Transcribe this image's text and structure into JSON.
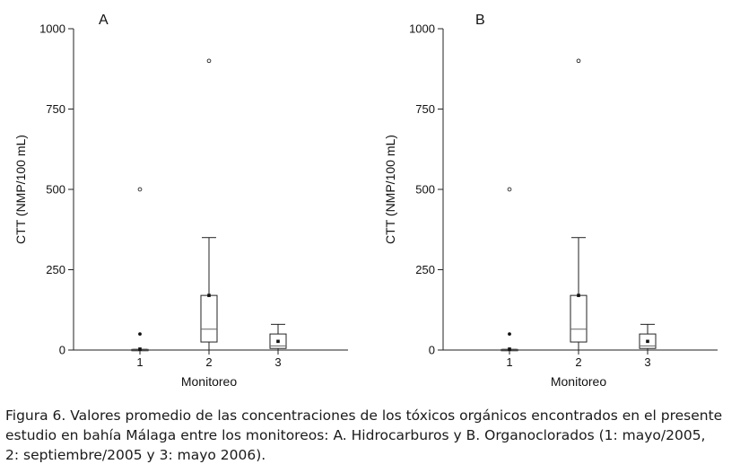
{
  "chart_data": [
    {
      "type": "box",
      "panel_label": "A",
      "xlabel": "Monitoreo",
      "ylabel": "CTT (NMP/100 mL)",
      "ylim": [
        0,
        1000
      ],
      "yticks": [
        0,
        250,
        500,
        750,
        1000
      ],
      "categories": [
        "1",
        "2",
        "3"
      ],
      "boxes": [
        {
          "category": "1",
          "whisker_low": 0,
          "q1": 0,
          "median": 0,
          "q3": 2,
          "whisker_high": 2,
          "mean": 3,
          "outliers": [
            50,
            500
          ]
        },
        {
          "category": "2",
          "whisker_low": 0,
          "q1": 25,
          "median": 65,
          "q3": 170,
          "whisker_high": 350,
          "mean": 170,
          "outliers": [
            900
          ]
        },
        {
          "category": "3",
          "whisker_low": 0,
          "q1": 5,
          "median": 13,
          "q3": 50,
          "whisker_high": 80,
          "mean": 27,
          "outliers": []
        }
      ]
    },
    {
      "type": "box",
      "panel_label": "B",
      "xlabel": "Monitoreo",
      "ylabel": "CTT (NMP/100 mL)",
      "ylim": [
        0,
        1000
      ],
      "yticks": [
        0,
        250,
        500,
        750,
        1000
      ],
      "categories": [
        "1",
        "2",
        "3"
      ],
      "boxes": [
        {
          "category": "1",
          "whisker_low": 0,
          "q1": 0,
          "median": 0,
          "q3": 2,
          "whisker_high": 2,
          "mean": 3,
          "outliers": [
            50,
            500
          ]
        },
        {
          "category": "2",
          "whisker_low": 0,
          "q1": 25,
          "median": 65,
          "q3": 170,
          "whisker_high": 350,
          "mean": 170,
          "outliers": [
            900
          ]
        },
        {
          "category": "3",
          "whisker_low": 0,
          "q1": 5,
          "median": 13,
          "q3": 50,
          "whisker_high": 80,
          "mean": 27,
          "outliers": []
        }
      ]
    }
  ],
  "caption": {
    "line1": "Figura 6. Valores promedio de las concentraciones de los tóxicos orgánicos encontrados en el presente",
    "line2": "estudio en bahía Málaga entre los monitoreos: A. Hidrocarburos y B. Organoclorados (1: mayo/2005,",
    "line3": "2: septiembre/2005 y 3: mayo 2006)."
  }
}
